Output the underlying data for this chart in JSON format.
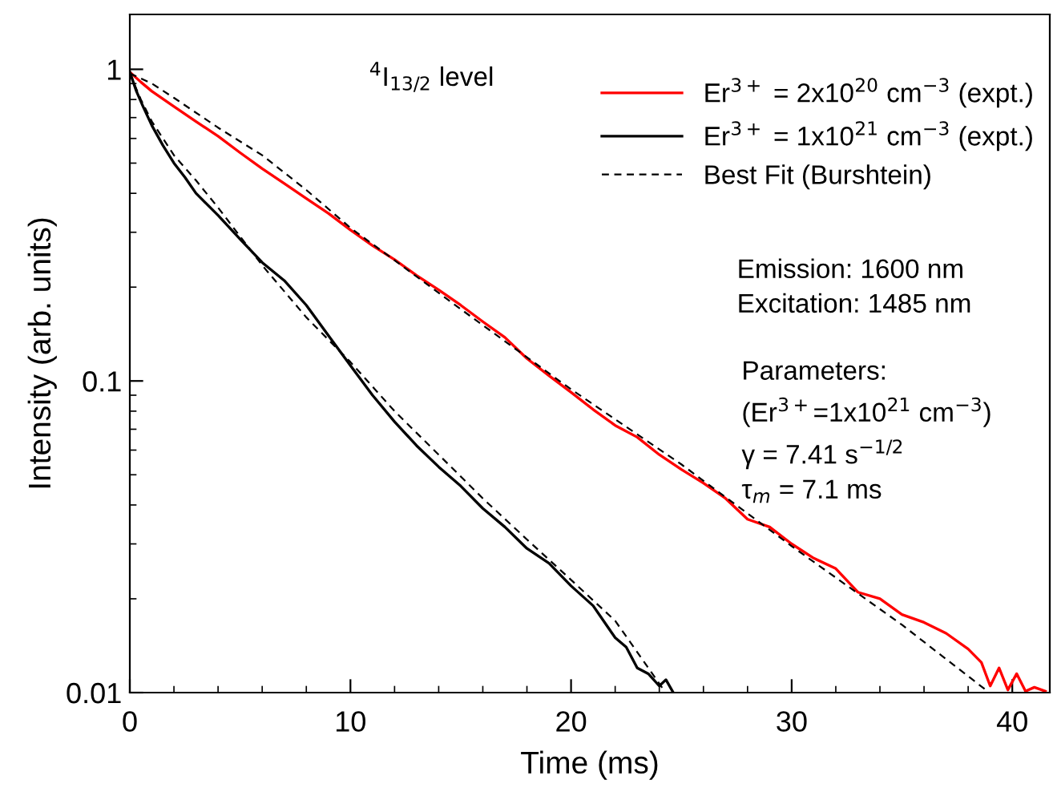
{
  "chart_data": {
    "type": "line",
    "xlabel": "Time (ms)",
    "ylabel": "Intensity (arb. units)",
    "log": "y",
    "xlim": [
      0,
      41.7
    ],
    "xticks": [
      0,
      10,
      20,
      30,
      40
    ],
    "ylim": [
      0.01,
      1.5
    ],
    "yticks": [
      {
        "value": 0.01,
        "label": "0.01"
      },
      {
        "value": 0.1,
        "label": "0.1"
      },
      {
        "value": 1,
        "label": "1"
      }
    ],
    "grid": false,
    "legend": "top right",
    "marker": "none",
    "series": [
      {
        "name": "Er$^{3+}$ = 2x10$^{20}$ cm$^{−3}$ (expt.)",
        "color": "#ff0000",
        "line_style": "solid",
        "x": [
          0,
          0.5,
          1,
          2,
          3,
          4,
          5,
          6,
          7,
          8,
          9,
          10,
          11,
          12,
          13,
          14,
          15,
          16,
          17,
          18,
          19,
          20,
          21,
          22,
          23,
          24,
          25,
          26,
          27,
          28,
          29,
          30,
          31,
          32,
          33,
          34,
          35,
          36,
          37,
          38,
          38.6,
          39.0,
          39.4,
          39.8,
          40.2,
          40.6,
          41.0,
          41.5
        ],
        "values": [
          0.98,
          0.91,
          0.85,
          0.76,
          0.68,
          0.61,
          0.54,
          0.48,
          0.43,
          0.385,
          0.345,
          0.305,
          0.272,
          0.245,
          0.218,
          0.196,
          0.175,
          0.155,
          0.138,
          0.118,
          0.104,
          0.092,
          0.081,
          0.072,
          0.066,
          0.058,
          0.052,
          0.047,
          0.042,
          0.036,
          0.034,
          0.03,
          0.027,
          0.025,
          0.021,
          0.02,
          0.0178,
          0.0168,
          0.0155,
          0.0138,
          0.0125,
          0.0105,
          0.012,
          0.0102,
          0.0115,
          0.0101,
          0.0104,
          0.0101
        ]
      },
      {
        "name": "Er$^{3+}$ = 1x10$^{21}$ cm$^{−3}$ (expt.)",
        "color": "#000000",
        "line_style": "solid",
        "x": [
          0,
          0.3,
          0.6,
          1,
          1.5,
          2,
          2.5,
          3,
          4,
          5,
          6,
          7,
          8,
          9,
          10,
          11,
          12,
          13,
          14,
          15,
          16,
          17,
          18,
          19,
          20,
          21,
          22,
          22.5,
          23,
          23.5,
          24,
          24.3,
          24.6
        ],
        "values": [
          0.98,
          0.85,
          0.76,
          0.66,
          0.57,
          0.5,
          0.45,
          0.4,
          0.34,
          0.285,
          0.24,
          0.21,
          0.175,
          0.14,
          0.112,
          0.09,
          0.074,
          0.062,
          0.053,
          0.046,
          0.039,
          0.034,
          0.029,
          0.026,
          0.022,
          0.019,
          0.015,
          0.014,
          0.012,
          0.0115,
          0.0105,
          0.011,
          0.0101
        ]
      },
      {
        "name": "Best Fit (Burshtein)",
        "color": "#000000",
        "line_style": "dashed",
        "x": [
          0,
          1,
          2,
          4,
          6,
          8,
          10,
          15,
          20,
          25,
          30,
          35,
          38.8
        ],
        "values": [
          0.97,
          0.9,
          0.81,
          0.65,
          0.53,
          0.41,
          0.31,
          0.17,
          0.094,
          0.054,
          0.0295,
          0.0165,
          0.0102
        ]
      },
      {
        "color": "#000000",
        "line_style": "dashed",
        "x": [
          0,
          0.5,
          1,
          2,
          3,
          4,
          6,
          8,
          10,
          12,
          14,
          16,
          18,
          20,
          22,
          24.2
        ],
        "values": [
          0.97,
          0.8,
          0.68,
          0.53,
          0.44,
          0.36,
          0.235,
          0.16,
          0.115,
          0.08,
          0.058,
          0.042,
          0.031,
          0.023,
          0.017,
          0.0102
        ]
      }
    ],
    "annotations": [
      "$^{4}$I$_{13/2}$ level",
      "Emission: 1600 nm\nExcitation: 1485 nm",
      "Parameters:\n(Er$^{3+}$=1x10$^{21}$ cm$^{−3}$)\nγ = 7.41 s$^{−1/2}$\nτ$_{m}$ = 7.1 ms"
    ]
  }
}
